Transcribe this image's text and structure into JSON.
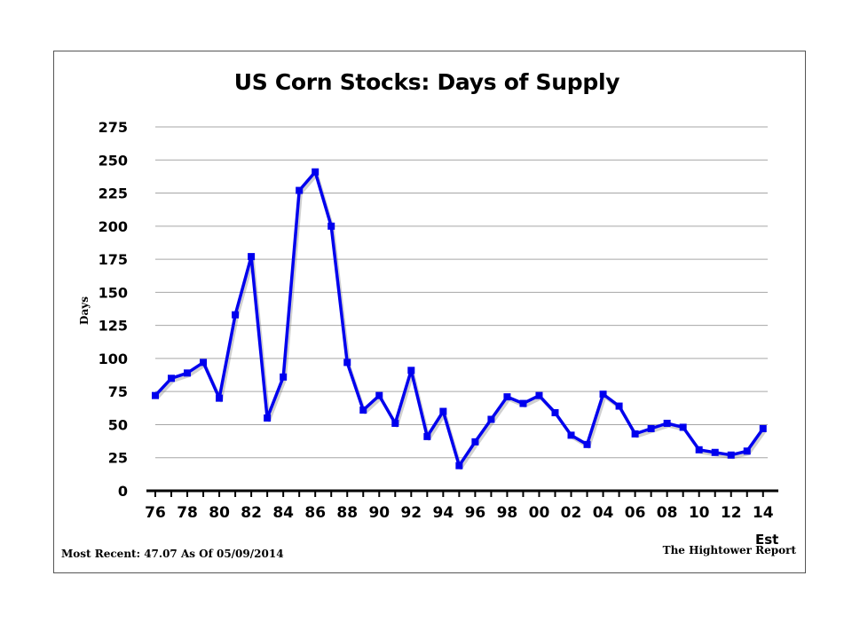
{
  "footer": {
    "most_recent": "Most Recent: 47.07 As Of 05/09/2014",
    "source": "The Hightower Report"
  },
  "colors": {
    "line": "#0000ee",
    "marker": "#0000ee",
    "grid": "#a6a6a6",
    "axis": "#000000"
  },
  "chart_data": {
    "type": "line",
    "title": "US Corn Stocks: Days of Supply",
    "xlabel": "",
    "ylabel": "Days",
    "ylim": [
      0,
      275
    ],
    "yticks": [
      0,
      25,
      50,
      75,
      100,
      125,
      150,
      175,
      200,
      225,
      250,
      275
    ],
    "xtick_labels": [
      "76",
      "78",
      "80",
      "82",
      "84",
      "86",
      "88",
      "90",
      "92",
      "94",
      "96",
      "98",
      "00",
      "02",
      "04",
      "06",
      "08",
      "10",
      "12",
      "14"
    ],
    "x_annotation": "Est",
    "grid": true,
    "series": [
      {
        "x": [
          "76",
          "77",
          "78",
          "79",
          "80",
          "81",
          "82",
          "83",
          "84",
          "85",
          "86",
          "87",
          "88",
          "89",
          "90",
          "91",
          "92",
          "93",
          "94",
          "95",
          "96",
          "97",
          "98",
          "99",
          "00",
          "01",
          "02",
          "03",
          "04",
          "05",
          "06",
          "07",
          "08",
          "09",
          "10",
          "11",
          "12",
          "13",
          "14"
        ],
        "values": [
          72,
          85,
          89,
          97,
          70,
          133,
          177,
          55,
          86,
          227,
          241,
          200,
          97,
          61,
          72,
          51,
          91,
          41,
          60,
          19,
          37,
          54,
          71,
          66,
          72,
          59,
          42,
          35,
          73,
          64,
          43,
          47,
          51,
          48,
          31,
          29,
          27,
          30,
          47
        ]
      }
    ]
  }
}
